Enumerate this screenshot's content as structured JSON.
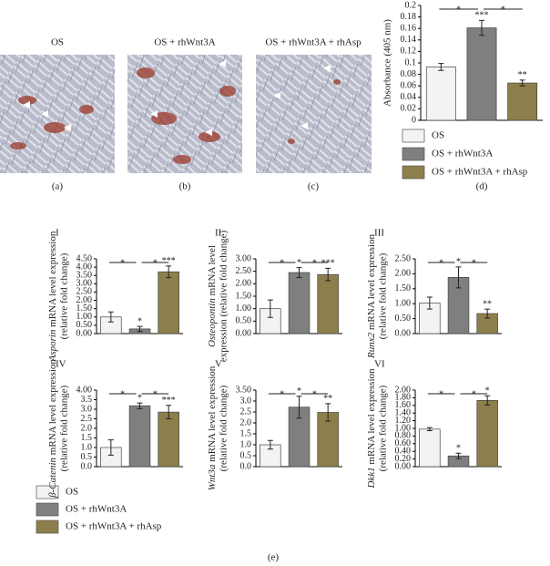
{
  "panels": [
    {
      "title": "OS",
      "caption": "(a)"
    },
    {
      "title": "OS + rhWnt3A",
      "caption": "(b)"
    },
    {
      "title": "OS + rhWnt3A + rhAsp",
      "caption": "(c)"
    }
  ],
  "legend": [
    {
      "name": "OS",
      "color": "#f3f3f3"
    },
    {
      "name": "OS + rhWnt3A",
      "color": "#7f7f7f"
    },
    {
      "name": "OS + rhWnt3A + rhAsp",
      "color": "#8d7f4b"
    }
  ],
  "caption_e": "(e)",
  "chart_data": [
    {
      "type": "bar",
      "caption": "(d)",
      "ylabel": "Absorbance (405 nm)",
      "ylim": [
        0,
        0.2
      ],
      "yticks": [
        0,
        0.02,
        0.04,
        0.06,
        0.08,
        0.1,
        0.12,
        0.14,
        0.16,
        0.18,
        0.2
      ],
      "values": [
        0.093,
        0.161,
        0.065
      ],
      "errors": [
        0.006,
        0.013,
        0.005
      ],
      "stars": [
        null,
        "***",
        "**"
      ],
      "brackets": [
        "*",
        "*"
      ]
    },
    {
      "type": "bar",
      "label": "I",
      "ylabel": [
        "Asporin",
        " mRNA level expression",
        "(relative fold change)"
      ],
      "ylim": [
        0,
        4.5
      ],
      "yticks": [
        {
          "value": 0,
          "label": "0.00"
        },
        {
          "value": 0.5,
          "label": "0.50"
        },
        {
          "value": 1,
          "label": "1.00"
        },
        {
          "value": 1.5,
          "label": "1.50"
        },
        {
          "value": 2,
          "label": "2.00"
        },
        {
          "value": 2.5,
          "label": "2.50"
        },
        {
          "value": 3,
          "label": "3.00"
        },
        {
          "value": 3.5,
          "label": "3.50"
        },
        {
          "value": 4,
          "label": "4.00"
        },
        {
          "value": 4.5,
          "label": "4.50"
        }
      ],
      "values": [
        1.0,
        0.28,
        3.72
      ],
      "errors": [
        0.3,
        0.15,
        0.35
      ],
      "stars": [
        null,
        "*",
        "***"
      ],
      "brackets": [
        "*",
        "*"
      ]
    },
    {
      "type": "bar",
      "label": "II",
      "ylabel": [
        "Osteopontin",
        " mRNA level",
        "expression (relative fold change)"
      ],
      "ylim": [
        0,
        3
      ],
      "yticks": [
        {
          "value": 0,
          "label": "0.00"
        },
        {
          "value": 0.5,
          "label": "0.50"
        },
        {
          "value": 1,
          "label": "1.00"
        },
        {
          "value": 1.5,
          "label": "1.50"
        },
        {
          "value": 2,
          "label": "2.00"
        },
        {
          "value": 2.5,
          "label": "2.50"
        },
        {
          "value": 3,
          "label": "3.00"
        }
      ],
      "values": [
        1.0,
        2.45,
        2.37
      ],
      "errors": [
        0.35,
        0.2,
        0.25
      ],
      "stars": [
        null,
        "*",
        "***"
      ],
      "brackets": [
        "*",
        "*"
      ]
    },
    {
      "type": "bar",
      "label": "III",
      "ylabel": [
        "Runx2",
        " mRNA level expression",
        "(relative fold change)"
      ],
      "ylim": [
        0,
        2.5
      ],
      "yticks": [
        {
          "value": 0,
          "label": "0.00"
        },
        {
          "value": 0.5,
          "label": "0.50"
        },
        {
          "value": 1,
          "label": "1.00"
        },
        {
          "value": 1.5,
          "label": "1.50"
        },
        {
          "value": 2,
          "label": "2.00"
        },
        {
          "value": 2.5,
          "label": "2.50"
        }
      ],
      "values": [
        1.02,
        1.88,
        0.67
      ],
      "errors": [
        0.2,
        0.35,
        0.15
      ],
      "stars": [
        null,
        "*",
        "**"
      ],
      "brackets": [
        "*",
        "*"
      ]
    },
    {
      "type": "bar",
      "label": "IV",
      "ylabel": [
        "β-Catenin",
        " mRNA level expression",
        "(relative fold change)"
      ],
      "ylim": [
        0,
        4
      ],
      "yticks": [
        {
          "value": 0,
          "label": "0.0"
        },
        0.5,
        {
          "value": 1,
          "label": "1.0"
        },
        1.5,
        {
          "value": 2,
          "label": "2.0"
        },
        2.5,
        {
          "value": 3,
          "label": "3.0"
        },
        3.5,
        {
          "value": 4,
          "label": "4.00"
        }
      ],
      "values": [
        1.0,
        3.18,
        2.85
      ],
      "errors": [
        0.4,
        0.15,
        0.35
      ],
      "stars": [
        null,
        "*",
        "***"
      ],
      "brackets": [
        "*",
        "*"
      ]
    },
    {
      "type": "bar",
      "label": "V",
      "ylabel": [
        "Wnt3a",
        " mRNA level expression",
        "(relative fold change)"
      ],
      "ylim": [
        0,
        3.5
      ],
      "yticks": [
        {
          "value": 0,
          "label": "0.0"
        },
        0.5,
        {
          "value": 1,
          "label": "1.0"
        },
        1.5,
        {
          "value": 2,
          "label": "2.0"
        },
        2.5,
        {
          "value": 3,
          "label": "3.0"
        },
        {
          "value": 3.5,
          "label": "3.50"
        }
      ],
      "values": [
        1.0,
        2.72,
        2.48
      ],
      "errors": [
        0.2,
        0.5,
        0.4
      ],
      "stars": [
        null,
        "*",
        "**"
      ],
      "brackets": [
        "*",
        "*"
      ]
    },
    {
      "type": "bar",
      "label": "VI",
      "ylabel": [
        "Dkk1",
        " mRNA level expression",
        "(relative fold change)"
      ],
      "ylim": [
        0,
        2
      ],
      "yticks": [
        {
          "value": 0,
          "label": "0.00"
        },
        {
          "value": 0.2,
          "label": "0.20"
        },
        {
          "value": 0.4,
          "label": "0.40"
        },
        {
          "value": 0.6,
          "label": "0.60"
        },
        {
          "value": 0.8,
          "label": "0.80"
        },
        {
          "value": 1,
          "label": "1.00"
        },
        {
          "value": 1.2,
          "label": "1.20"
        },
        {
          "value": 1.4,
          "label": "1.40"
        },
        {
          "value": 1.6,
          "label": "1.60"
        },
        {
          "value": 1.8,
          "label": "1.80"
        },
        {
          "value": 2,
          "label": "2.00"
        }
      ],
      "values": [
        0.98,
        0.28,
        1.73
      ],
      "errors": [
        0.04,
        0.07,
        0.12
      ],
      "stars": [
        null,
        "*",
        "*"
      ],
      "brackets": [
        "*",
        "*"
      ]
    }
  ]
}
